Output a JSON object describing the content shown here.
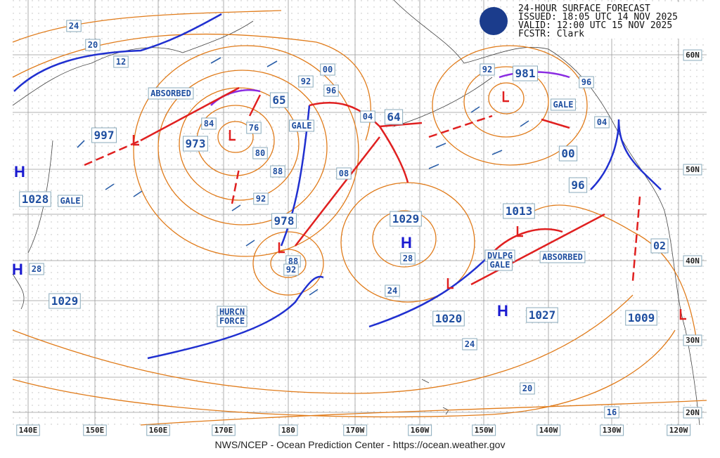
{
  "header": {
    "title": "24-HOUR SURFACE FORECAST",
    "issued": "ISSUED: 18:05 UTC 14 NOV 2025",
    "valid": "VALID:  12:00 UTC 15 NOV 2025",
    "forecaster": "FCSTR:  Clark"
  },
  "footer": "NWS/NCEP - Ocean Prediction Center - https://ocean.weather.gov",
  "lon_labels": [
    "140E",
    "150E",
    "160E",
    "170E",
    "180",
    "170W",
    "160W",
    "150W",
    "140W",
    "130W",
    "120W"
  ],
  "lat_labels": [
    "60N",
    "50N",
    "40N",
    "30N",
    "20N"
  ],
  "pressure_labels": [
    "997",
    "973",
    "65",
    "978",
    "1028",
    "1029",
    "1029",
    "64",
    "981",
    "00",
    "96",
    "1013",
    "1020",
    "1027",
    "1009"
  ],
  "isobar_labels": [
    "24",
    "20",
    "12",
    "84",
    "76",
    "80",
    "88",
    "92",
    "92",
    "96",
    "00",
    "04",
    "08",
    "88",
    "92",
    "28",
    "28",
    "24",
    "24",
    "20",
    "16",
    "92",
    "96",
    "04",
    "02"
  ],
  "warnings": [
    [
      "GALE"
    ],
    [
      "GALE"
    ],
    [
      "GALE"
    ],
    [
      "HURCN",
      "FORCE"
    ],
    [
      "DVLPG",
      "GALE"
    ]
  ],
  "annotations": [
    "ABSORBED",
    "ABSORBED"
  ],
  "highs": [
    "H",
    "H",
    "H",
    "H"
  ]
}
